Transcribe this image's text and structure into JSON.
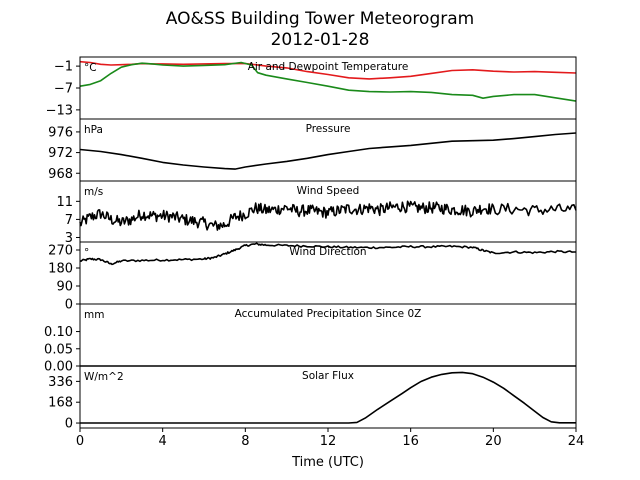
{
  "chart_data": {
    "type": "line",
    "title": "AO&SS Building Tower Meteorogram",
    "subtitle": "2012-01-28",
    "xlabel": "Time (UTC)",
    "x_ticks": [
      "0",
      "4",
      "8",
      "12",
      "16",
      "20",
      "24"
    ],
    "x_tick_values": [
      0,
      4,
      8,
      12,
      16,
      20,
      24
    ],
    "xlim": [
      0,
      24
    ],
    "panels": [
      {
        "key": "temp",
        "label": "Air and Dewpoint Temperature",
        "unit": "°C",
        "ylim": [
          -15.5,
          1.5
        ],
        "yticks": [
          -1,
          -7,
          -13
        ],
        "ytick_labels": [
          "−1",
          "−7",
          "−13"
        ],
        "series": [
          {
            "color": "#e31a1c",
            "points": [
              [
                0,
                0.2
              ],
              [
                0.5,
                0.0
              ],
              [
                1,
                -0.5
              ],
              [
                1.5,
                -0.7
              ],
              [
                2,
                -0.6
              ],
              [
                2.5,
                -0.5
              ],
              [
                3,
                -0.3
              ],
              [
                3.5,
                -0.4
              ],
              [
                4,
                -0.4
              ],
              [
                5,
                -0.5
              ],
              [
                6,
                -0.4
              ],
              [
                7,
                -0.3
              ],
              [
                8,
                -0.3
              ],
              [
                8.5,
                -0.6
              ],
              [
                9,
                -1.0
              ],
              [
                10,
                -1.5
              ],
              [
                11,
                -2.5
              ],
              [
                12,
                -3.3
              ],
              [
                13,
                -4.2
              ],
              [
                14,
                -4.5
              ],
              [
                15,
                -4.2
              ],
              [
                16,
                -3.8
              ],
              [
                17,
                -3.0
              ],
              [
                18,
                -2.2
              ],
              [
                19,
                -2.0
              ],
              [
                20,
                -2.4
              ],
              [
                21,
                -2.6
              ],
              [
                22,
                -2.5
              ],
              [
                23,
                -2.7
              ],
              [
                24,
                -2.9
              ]
            ]
          },
          {
            "color": "#1a8a1a",
            "points": [
              [
                0,
                -6.5
              ],
              [
                0.5,
                -6.0
              ],
              [
                1,
                -5.0
              ],
              [
                1.5,
                -3.0
              ],
              [
                2,
                -1.3
              ],
              [
                2.5,
                -0.6
              ],
              [
                3,
                -0.2
              ],
              [
                3.5,
                -0.4
              ],
              [
                4,
                -0.7
              ],
              [
                5,
                -1.0
              ],
              [
                6,
                -0.8
              ],
              [
                7,
                -0.6
              ],
              [
                7.8,
                0.0
              ],
              [
                8.3,
                -0.7
              ],
              [
                8.6,
                -2.8
              ],
              [
                9,
                -3.5
              ],
              [
                10,
                -4.5
              ],
              [
                11,
                -5.5
              ],
              [
                12,
                -6.5
              ],
              [
                13,
                -7.6
              ],
              [
                14,
                -8.0
              ],
              [
                15,
                -8.1
              ],
              [
                16,
                -8.0
              ],
              [
                17,
                -8.2
              ],
              [
                18,
                -8.8
              ],
              [
                19,
                -9.0
              ],
              [
                19.5,
                -9.8
              ],
              [
                20,
                -9.3
              ],
              [
                21,
                -8.8
              ],
              [
                22,
                -8.8
              ],
              [
                23,
                -9.7
              ],
              [
                24,
                -10.6
              ]
            ]
          }
        ]
      },
      {
        "key": "pres",
        "label": "Pressure",
        "unit": "hPa",
        "ylim": [
          966.5,
          978.5
        ],
        "yticks": [
          976,
          972,
          968
        ],
        "ytick_labels": [
          "976",
          "972",
          "968"
        ],
        "series": [
          {
            "color": "#000000",
            "points": [
              [
                0,
                972.6
              ],
              [
                1,
                972.2
              ],
              [
                2,
                971.6
              ],
              [
                3,
                970.9
              ],
              [
                4,
                970.1
              ],
              [
                5,
                969.6
              ],
              [
                6,
                969.2
              ],
              [
                7,
                968.9
              ],
              [
                7.5,
                968.8
              ],
              [
                8,
                969.2
              ],
              [
                9,
                969.8
              ],
              [
                10,
                970.3
              ],
              [
                11,
                970.9
              ],
              [
                12,
                971.6
              ],
              [
                13,
                972.2
              ],
              [
                14,
                972.8
              ],
              [
                15,
                973.1
              ],
              [
                16,
                973.4
              ],
              [
                17,
                973.8
              ],
              [
                18,
                974.2
              ],
              [
                19,
                974.3
              ],
              [
                20,
                974.4
              ],
              [
                21,
                974.7
              ],
              [
                22,
                975.1
              ],
              [
                23,
                975.5
              ],
              [
                24,
                975.8
              ]
            ]
          }
        ]
      },
      {
        "key": "wspd",
        "label": "Wind Speed",
        "unit": "m/s",
        "ylim": [
          2.0,
          15.5
        ],
        "yticks": [
          11,
          7,
          3
        ],
        "ytick_labels": [
          "11",
          "7",
          "3"
        ],
        "series": [
          {
            "color": "#000000",
            "noise": 1.3,
            "points": [
              [
                0,
                6.0
              ],
              [
                0.5,
                7.5
              ],
              [
                1,
                8.3
              ],
              [
                1.5,
                7.0
              ],
              [
                2,
                6.3
              ],
              [
                2.5,
                7.0
              ],
              [
                3,
                8.2
              ],
              [
                3.5,
                7.8
              ],
              [
                4,
                7.8
              ],
              [
                4.5,
                7.6
              ],
              [
                5,
                7.0
              ],
              [
                5.5,
                6.6
              ],
              [
                6,
                6.2
              ],
              [
                6.5,
                5.5
              ],
              [
                7,
                5.8
              ],
              [
                7.5,
                7.5
              ],
              [
                8,
                8.2
              ],
              [
                8.5,
                9.5
              ],
              [
                9,
                9.0
              ],
              [
                9.5,
                9.2
              ],
              [
                10,
                9.6
              ],
              [
                10.5,
                8.8
              ],
              [
                11,
                9.0
              ],
              [
                11.5,
                8.7
              ],
              [
                12,
                8.5
              ],
              [
                12.5,
                8.9
              ],
              [
                13,
                9.4
              ],
              [
                13.5,
                9.2
              ],
              [
                14,
                9.6
              ],
              [
                14.5,
                9.1
              ],
              [
                15,
                9.6
              ],
              [
                15.5,
                9.9
              ],
              [
                16,
                9.7
              ],
              [
                16.5,
                9.5
              ],
              [
                17,
                9.6
              ],
              [
                17.5,
                9.5
              ],
              [
                18,
                9.2
              ],
              [
                18.5,
                9.1
              ],
              [
                19,
                8.8
              ],
              [
                19.5,
                9.6
              ],
              [
                20,
                9.2
              ],
              [
                21,
                9.3
              ],
              [
                22,
                9.0
              ],
              [
                23,
                9.2
              ],
              [
                24,
                9.0
              ]
            ]
          }
        ]
      },
      {
        "key": "wdir",
        "label": "Wind Direction",
        "unit": "°",
        "ylim": [
          0,
          310
        ],
        "yticks": [
          270,
          180,
          90,
          0
        ],
        "ytick_labels": [
          "270",
          "180",
          "90",
          "0"
        ],
        "series": [
          {
            "color": "#000000",
            "noise": 5,
            "points": [
              [
                0,
                215
              ],
              [
                0.5,
                225
              ],
              [
                1,
                222
              ],
              [
                1.5,
                200
              ],
              [
                2,
                215
              ],
              [
                3,
                218
              ],
              [
                4,
                220
              ],
              [
                5,
                222
              ],
              [
                6,
                225
              ],
              [
                6.5,
                232
              ],
              [
                7,
                250
              ],
              [
                7.5,
                270
              ],
              [
                8,
                292
              ],
              [
                8.5,
                300
              ],
              [
                9,
                295
              ],
              [
                10,
                292
              ],
              [
                11,
                290
              ],
              [
                12,
                286
              ],
              [
                13,
                283
              ],
              [
                14,
                282
              ],
              [
                15,
                283
              ],
              [
                16,
                287
              ],
              [
                17,
                286
              ],
              [
                18,
                288
              ],
              [
                19,
                283
              ],
              [
                19.5,
                268
              ],
              [
                20,
                255
              ],
              [
                21,
                260
              ],
              [
                22,
                257
              ],
              [
                23,
                262
              ],
              [
                24,
                260
              ]
            ]
          }
        ]
      },
      {
        "key": "prec",
        "label": "Accumulated Precipitation Since 0Z",
        "unit": "mm",
        "ylim": [
          0,
          0.18
        ],
        "yticks": [
          0.1,
          0.05,
          0.0
        ],
        "ytick_labels": [
          "0.10",
          "0.05",
          "0.00"
        ],
        "series": [
          {
            "color": "#000000",
            "points": [
              [
                0,
                0
              ],
              [
                24,
                0
              ]
            ]
          }
        ]
      },
      {
        "key": "solar",
        "label": "Solar Flux",
        "unit": "W/m^2",
        "ylim": [
          -40,
          460
        ],
        "yticks": [
          336,
          168,
          0
        ],
        "ytick_labels": [
          "336",
          "168",
          "0"
        ],
        "series": [
          {
            "color": "#000000",
            "points": [
              [
                0,
                0
              ],
              [
                13,
                0
              ],
              [
                13.4,
                5
              ],
              [
                13.8,
                40
              ],
              [
                14.4,
                110
              ],
              [
                15,
                175
              ],
              [
                15.6,
                240
              ],
              [
                16,
                285
              ],
              [
                16.5,
                335
              ],
              [
                17,
                370
              ],
              [
                17.5,
                392
              ],
              [
                18,
                405
              ],
              [
                18.5,
                408
              ],
              [
                19,
                398
              ],
              [
                19.5,
                370
              ],
              [
                20,
                330
              ],
              [
                20.5,
                280
              ],
              [
                21,
                220
              ],
              [
                21.5,
                160
              ],
              [
                22,
                95
              ],
              [
                22.4,
                45
              ],
              [
                22.8,
                10
              ],
              [
                23.2,
                2
              ],
              [
                24,
                2
              ]
            ]
          }
        ]
      }
    ]
  }
}
